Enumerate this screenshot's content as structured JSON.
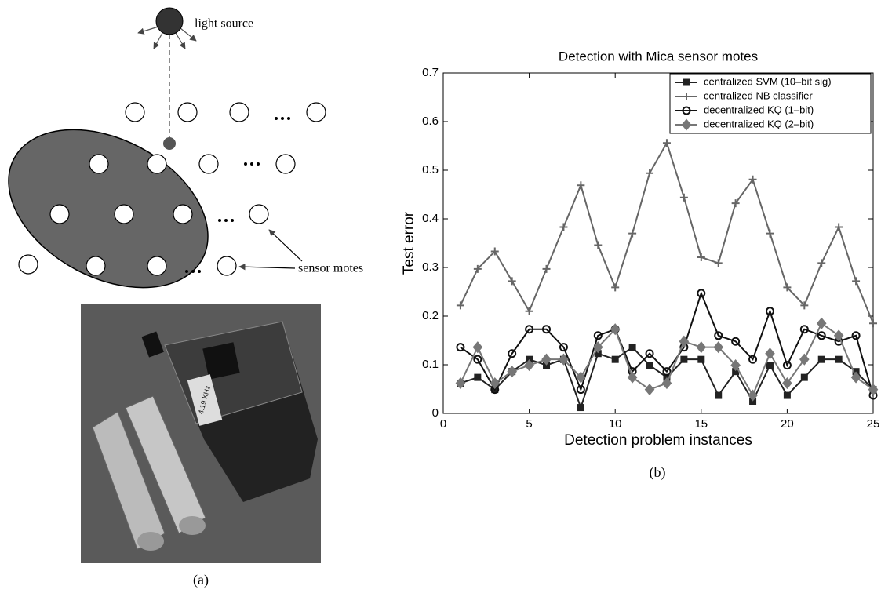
{
  "diagram": {
    "light_source_label": "light source",
    "sensor_motes_label": "sensor motes",
    "caption": "(a)"
  },
  "photo": {
    "label": "4.19 KHz"
  },
  "chart_data": {
    "type": "line",
    "title": "Detection with Mica sensor motes",
    "x_label": "Detection problem instances",
    "y_label": "Test error",
    "caption": "(b)",
    "x": [
      1,
      2,
      3,
      4,
      5,
      6,
      7,
      8,
      9,
      10,
      11,
      12,
      13,
      14,
      15,
      16,
      17,
      18,
      19,
      20,
      21,
      22,
      23,
      24,
      25
    ],
    "series": [
      {
        "name": "centralized SVM (10–bit sig)",
        "color": "#222222",
        "marker": "square",
        "values": [
          0.062,
          0.074,
          0.049,
          0.086,
          0.111,
          0.099,
          0.111,
          0.012,
          0.123,
          0.111,
          0.136,
          0.099,
          0.074,
          0.111,
          0.111,
          0.037,
          0.086,
          0.025,
          0.099,
          0.037,
          0.074,
          0.111,
          0.111,
          0.086,
          0.049
        ]
      },
      {
        "name": "centralized NB classifier",
        "color": "#666666",
        "marker": "plus",
        "values": [
          0.222,
          0.297,
          0.333,
          0.272,
          0.21,
          0.297,
          0.383,
          0.469,
          0.346,
          0.259,
          0.37,
          0.494,
          0.556,
          0.444,
          0.321,
          0.309,
          0.432,
          0.481,
          0.37,
          0.259,
          0.222,
          0.309,
          0.383,
          0.272,
          0.185
        ]
      },
      {
        "name": "decentralized KQ (1–bit)",
        "color": "#111111",
        "marker": "circle",
        "values": [
          0.136,
          0.111,
          0.049,
          0.123,
          0.173,
          0.173,
          0.136,
          0.049,
          0.16,
          0.173,
          0.086,
          0.123,
          0.086,
          0.136,
          0.247,
          0.16,
          0.148,
          0.111,
          0.21,
          0.099,
          0.173,
          0.16,
          0.148,
          0.16,
          0.037
        ]
      },
      {
        "name": "decentralized KQ (2–bit)",
        "color": "#777777",
        "marker": "diamond",
        "values": [
          0.062,
          0.136,
          0.062,
          0.086,
          0.099,
          0.111,
          0.111,
          0.074,
          0.136,
          0.173,
          0.074,
          0.049,
          0.062,
          0.148,
          0.136,
          0.136,
          0.099,
          0.037,
          0.123,
          0.062,
          0.111,
          0.185,
          0.16,
          0.074,
          0.049
        ]
      }
    ],
    "xlim": [
      0,
      25
    ],
    "ylim": [
      0,
      0.7
    ],
    "xticks": [
      0,
      5,
      10,
      15,
      20,
      25
    ],
    "yticks": [
      0,
      0.1,
      0.2,
      0.3,
      0.4,
      0.5,
      0.6,
      0.7
    ],
    "legend": "upper right"
  }
}
